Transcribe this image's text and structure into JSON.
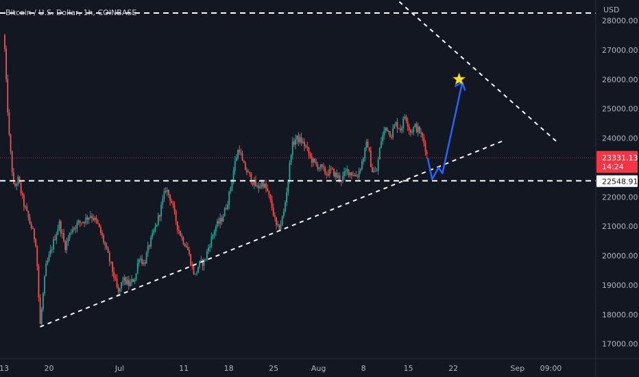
{
  "header": {
    "title": "Bitcoin / U.S. Dollar, 1h, COINBASE",
    "currency": "USD"
  },
  "colors": {
    "background": "#131722",
    "bull": "#26a69a",
    "bear": "#ef5350",
    "axis_text": "#b2b5be",
    "price_tag": "#f23645",
    "level_tag": "#ffffff",
    "projection": "#2962ff",
    "star": "#f5e33b",
    "trendline": "#ffffff"
  },
  "chart_data": {
    "type": "candlestick",
    "y_axis": {
      "min": 16500,
      "max": 28300,
      "ticks": [
        28000,
        27000,
        26000,
        25000,
        24000,
        22000,
        21000,
        20000,
        19000,
        18000,
        17000
      ],
      "tick_labels": [
        "28000.00",
        "27000.00",
        "26000.00",
        "25000.00",
        "24000.00",
        "22000.00",
        "21000.00",
        "20000.00",
        "19000.00",
        "18000.00",
        "17000.00"
      ]
    },
    "x_axis": {
      "ticks": [
        {
          "label": "13",
          "day": 0
        },
        {
          "label": "20",
          "day": 7
        },
        {
          "label": "Jul",
          "day": 18
        },
        {
          "label": "11",
          "day": 28
        },
        {
          "label": "18",
          "day": 35
        },
        {
          "label": "25",
          "day": 42
        },
        {
          "label": "Aug",
          "day": 49
        },
        {
          "label": "8",
          "day": 56
        },
        {
          "label": "15",
          "day": 63
        },
        {
          "label": "22",
          "day": 70
        },
        {
          "label": "Sep",
          "day": 80
        },
        {
          "label": "09:00",
          "day": 85.2
        }
      ]
    },
    "price_path": [
      [
        0,
        27500
      ],
      [
        0.3,
        26000
      ],
      [
        0.8,
        24000
      ],
      [
        1.5,
        22300
      ],
      [
        2.2,
        22600
      ],
      [
        3.0,
        21800
      ],
      [
        4.2,
        21000
      ],
      [
        5.0,
        20400
      ],
      [
        5.6,
        17600
      ],
      [
        6.0,
        18500
      ],
      [
        6.5,
        19600
      ],
      [
        7.2,
        20100
      ],
      [
        8.0,
        20700
      ],
      [
        8.6,
        21100
      ],
      [
        9.5,
        20300
      ],
      [
        10.5,
        20900
      ],
      [
        11.5,
        21100
      ],
      [
        12.5,
        21200
      ],
      [
        13.5,
        21400
      ],
      [
        14.5,
        21100
      ],
      [
        15.5,
        20500
      ],
      [
        16.2,
        20000
      ],
      [
        17.0,
        19400
      ],
      [
        17.8,
        18700
      ],
      [
        18.5,
        19200
      ],
      [
        19.5,
        19000
      ],
      [
        20.5,
        19300
      ],
      [
        21.0,
        20000
      ],
      [
        21.8,
        19700
      ],
      [
        22.5,
        20300
      ],
      [
        23.5,
        20900
      ],
      [
        24.3,
        21500
      ],
      [
        25.2,
        22300
      ],
      [
        26.0,
        21900
      ],
      [
        27.0,
        21000
      ],
      [
        27.7,
        20600
      ],
      [
        28.5,
        20300
      ],
      [
        29.3,
        19600
      ],
      [
        29.8,
        19300
      ],
      [
        30.3,
        19700
      ],
      [
        31.2,
        19800
      ],
      [
        32.0,
        20400
      ],
      [
        33.0,
        21000
      ],
      [
        33.8,
        21200
      ],
      [
        34.5,
        21600
      ],
      [
        35.0,
        22000
      ],
      [
        35.5,
        22600
      ],
      [
        36.0,
        23200
      ],
      [
        36.6,
        23700
      ],
      [
        37.2,
        23100
      ],
      [
        38.0,
        22800
      ],
      [
        38.8,
        22500
      ],
      [
        39.5,
        22300
      ],
      [
        40.2,
        22500
      ],
      [
        41.0,
        22200
      ],
      [
        41.8,
        21600
      ],
      [
        42.5,
        20900
      ],
      [
        43.0,
        21000
      ],
      [
        43.6,
        21500
      ],
      [
        44.2,
        22500
      ],
      [
        44.8,
        23700
      ],
      [
        45.5,
        24000
      ],
      [
        46.3,
        23900
      ],
      [
        47.0,
        23700
      ],
      [
        47.8,
        23300
      ],
      [
        48.5,
        23100
      ],
      [
        49.3,
        23000
      ],
      [
        50.2,
        22800
      ],
      [
        51.0,
        22900
      ],
      [
        51.8,
        22700
      ],
      [
        52.6,
        22600
      ],
      [
        53.4,
        22900
      ],
      [
        54.2,
        22800
      ],
      [
        55.0,
        22700
      ],
      [
        55.8,
        23200
      ],
      [
        56.6,
        23900
      ],
      [
        57.3,
        22900
      ],
      [
        58.0,
        22800
      ],
      [
        58.7,
        23900
      ],
      [
        59.5,
        24400
      ],
      [
        60.3,
        24100
      ],
      [
        61.0,
        24500
      ],
      [
        61.8,
        24300
      ],
      [
        62.5,
        24800
      ],
      [
        63.3,
        24200
      ],
      [
        64.0,
        24400
      ],
      [
        64.8,
        24200
      ],
      [
        65.5,
        23800
      ],
      [
        66.0,
        23331
      ]
    ],
    "current_price": 23331.13,
    "current_price_label": "23331.13",
    "countdown_label": "14:24",
    "support_level": 22548.91,
    "support_label": "22548.91",
    "resistance_level": 28000,
    "lower_trendline": [
      [
        5.6,
        17580
      ],
      [
        78.0,
        23930
      ]
    ],
    "upper_trendline": [
      [
        52.0,
        30500
      ],
      [
        86.0,
        23900
      ]
    ],
    "projection_path": [
      [
        66.0,
        23331
      ],
      [
        66.7,
        22600
      ],
      [
        67.7,
        23000
      ],
      [
        68.3,
        22800
      ],
      [
        71.4,
        25900
      ]
    ],
    "star_point": [
      70.9,
      26000
    ],
    "last_day": 66.0
  }
}
